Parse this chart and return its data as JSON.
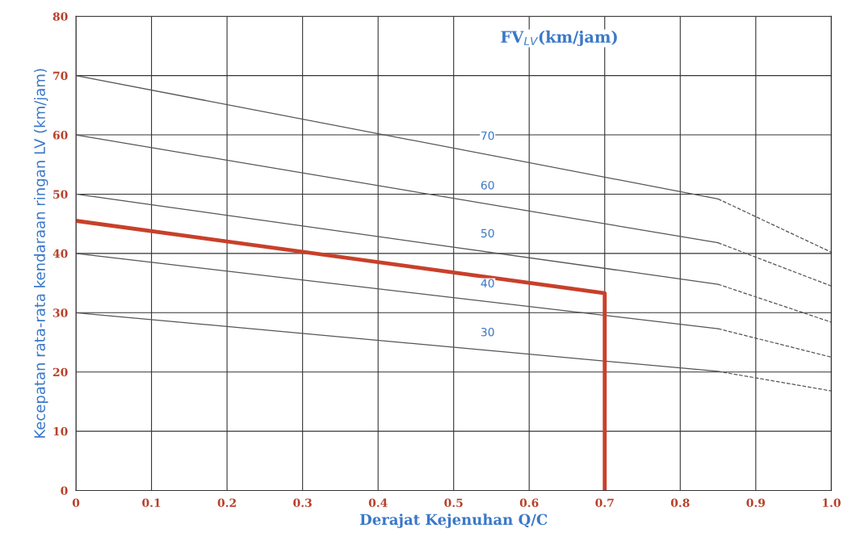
{
  "chart_data": {
    "type": "line",
    "title": "FV$_{LV}$(km/jam)",
    "xlabel": "Derajat Kejenuhan Q/C",
    "ylabel": "Kecepatan rata-rata kendaraan ringan LV (km/jam)",
    "xlim": [
      0,
      1.0
    ],
    "ylim": [
      0,
      80
    ],
    "xticks": [
      {
        "value": 0,
        "label": "0"
      },
      0.1,
      0.2,
      0.3,
      0.4,
      0.5,
      0.6,
      0.7,
      0.8,
      0.9,
      {
        "value": 1.0,
        "label": "1.0"
      }
    ],
    "yticks": [
      0,
      10,
      20,
      30,
      40,
      50,
      60,
      70,
      80
    ],
    "grid": true,
    "marker": "none",
    "series": [
      {
        "name": "70",
        "color": "#555555",
        "x": [
          0,
          0.85
        ],
        "values": [
          70,
          49.2
        ],
        "line_style": "solid"
      },
      {
        "color": "#555555",
        "x": [
          0.85,
          1.0
        ],
        "values": [
          49.2,
          40.2
        ],
        "line_style": "dashed"
      },
      {
        "name": "60",
        "color": "#555555",
        "x": [
          0,
          0.85
        ],
        "values": [
          60,
          41.8
        ],
        "line_style": "solid"
      },
      {
        "color": "#555555",
        "x": [
          0.85,
          1.0
        ],
        "values": [
          41.8,
          34.5
        ],
        "line_style": "dashed"
      },
      {
        "name": "50",
        "color": "#555555",
        "x": [
          0,
          0.85
        ],
        "values": [
          50,
          34.8
        ],
        "line_style": "solid"
      },
      {
        "color": "#555555",
        "x": [
          0.85,
          1.0
        ],
        "values": [
          34.8,
          28.4
        ],
        "line_style": "dashed"
      },
      {
        "name": "40",
        "color": "#555555",
        "x": [
          0,
          0.85
        ],
        "values": [
          40,
          27.3
        ],
        "line_style": "solid"
      },
      {
        "color": "#555555",
        "x": [
          0.85,
          1.0
        ],
        "values": [
          27.3,
          22.5
        ],
        "line_style": "dashed"
      },
      {
        "name": "30",
        "color": "#555555",
        "x": [
          0,
          0.85
        ],
        "values": [
          30,
          20.1
        ],
        "line_style": "solid"
      },
      {
        "color": "#555555",
        "x": [
          0.85,
          1.0
        ],
        "values": [
          20.1,
          16.8
        ],
        "line_style": "dashed"
      },
      {
        "color": "#c8402a",
        "x": [
          0,
          0.7,
          0.7
        ],
        "values": [
          45.5,
          33.3,
          0
        ],
        "line_style": "solid"
      }
    ]
  }
}
